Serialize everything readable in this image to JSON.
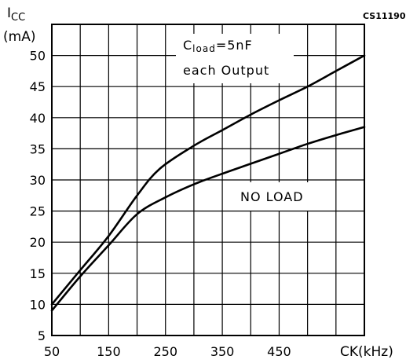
{
  "chart_data": {
    "type": "line",
    "figure_code": "CS11190",
    "ylabel_main": "I",
    "ylabel_sub": "CC",
    "ylabel_unit": "(mA)",
    "xlabel": "CK(kHz)",
    "xlim": [
      50,
      600
    ],
    "ylim": [
      5,
      55
    ],
    "x_ticks": [
      50,
      150,
      250,
      350,
      450
    ],
    "y_ticks": [
      5,
      10,
      15,
      20,
      25,
      30,
      35,
      40,
      45,
      50
    ],
    "grid": true,
    "annotation_load": {
      "prefix": "C",
      "sub": "load",
      "suffix": "=5nF",
      "line2": "each  Output"
    },
    "annotation_noload": "NO  LOAD",
    "series": [
      {
        "x": [
          50,
          100,
          150,
          200,
          240,
          300,
          350,
          400,
          450,
          500,
          550,
          600
        ],
        "y": [
          10,
          15.5,
          21,
          27.5,
          31.8,
          35.5,
          38,
          40.5,
          42.8,
          45,
          47.5,
          50
        ]
      },
      {
        "x": [
          50,
          100,
          150,
          200,
          250,
          300,
          350,
          400,
          450,
          500,
          550,
          600
        ],
        "y": [
          9,
          14.5,
          19.5,
          24.5,
          27.2,
          29.3,
          31,
          32.6,
          34.2,
          35.8,
          37.2,
          38.5
        ]
      }
    ]
  }
}
